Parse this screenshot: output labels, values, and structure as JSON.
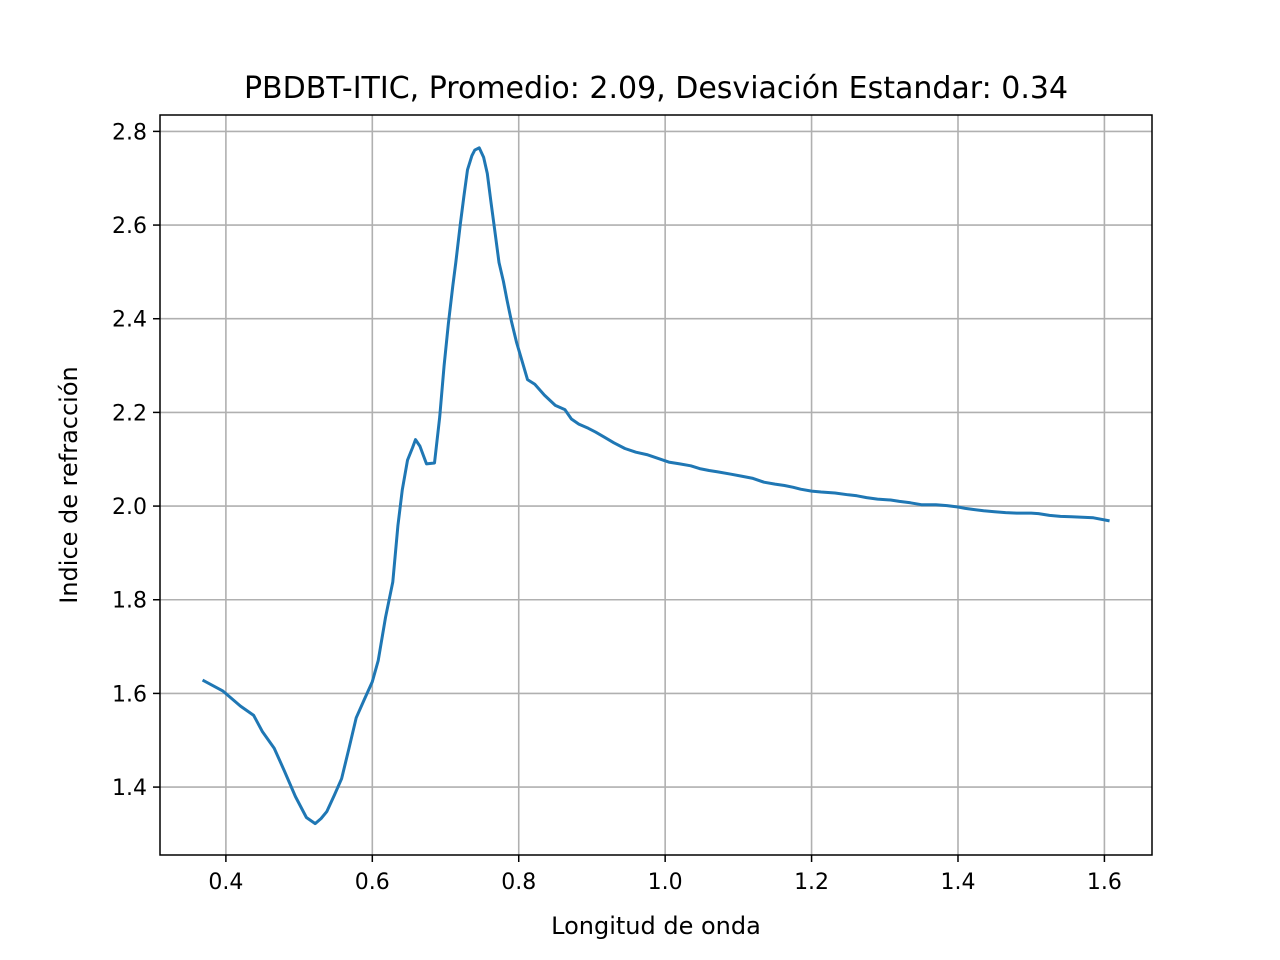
{
  "chart_data": {
    "type": "line",
    "title": "PBDBT-ITIC, Promedio: 2.09, Desviación Estandar: 0.34",
    "xlabel": "Longitud de onda",
    "ylabel": "Indice de refracción",
    "xlim": [
      0.31,
      1.665
    ],
    "ylim": [
      1.255,
      2.835
    ],
    "grid": true,
    "color": "#1f77b4",
    "x_ticks": [
      "0.4",
      "0.6",
      "0.8",
      "1.0",
      "1.2",
      "1.4",
      "1.6"
    ],
    "y_ticks": [
      "1.4",
      "1.6",
      "1.8",
      "2.0",
      "2.2",
      "2.4",
      "2.6",
      "2.8"
    ],
    "series": [
      {
        "x": [
          0.37,
          0.396,
          0.42,
          0.438,
          0.45,
          0.466,
          0.48,
          0.495,
          0.51,
          0.522,
          0.53,
          0.538,
          0.548,
          0.558,
          0.568,
          0.578,
          0.589,
          0.6,
          0.608,
          0.618,
          0.628,
          0.635,
          0.641,
          0.648,
          0.655,
          0.659,
          0.665,
          0.674,
          0.685,
          0.692,
          0.698,
          0.704,
          0.71,
          0.714,
          0.72,
          0.725,
          0.73,
          0.736,
          0.74,
          0.746,
          0.752,
          0.757,
          0.762,
          0.768,
          0.773,
          0.779,
          0.784,
          0.79,
          0.797,
          0.803,
          0.812,
          0.822,
          0.835,
          0.85,
          0.863,
          0.872,
          0.882,
          0.895,
          0.905,
          0.917,
          0.93,
          0.945,
          0.96,
          0.975,
          0.99,
          1.005,
          1.02,
          1.035,
          1.047,
          1.06,
          1.072,
          1.09,
          1.104,
          1.12,
          1.135,
          1.15,
          1.163,
          1.175,
          1.185,
          1.2,
          1.213,
          1.232,
          1.25,
          1.262,
          1.275,
          1.29,
          1.308,
          1.32,
          1.335,
          1.35,
          1.37,
          1.385,
          1.4,
          1.41,
          1.42,
          1.435,
          1.45,
          1.465,
          1.48,
          1.5,
          1.51,
          1.525,
          1.54,
          1.555,
          1.57,
          1.585,
          1.605
        ],
        "y": [
          1.627,
          1.605,
          1.573,
          1.553,
          1.518,
          1.483,
          1.434,
          1.38,
          1.335,
          1.322,
          1.333,
          1.348,
          1.382,
          1.418,
          1.482,
          1.548,
          1.587,
          1.625,
          1.67,
          1.762,
          1.838,
          1.958,
          2.035,
          2.098,
          2.125,
          2.142,
          2.128,
          2.09,
          2.092,
          2.19,
          2.3,
          2.39,
          2.47,
          2.52,
          2.6,
          2.66,
          2.718,
          2.748,
          2.76,
          2.765,
          2.745,
          2.71,
          2.65,
          2.58,
          2.52,
          2.48,
          2.44,
          2.395,
          2.35,
          2.318,
          2.27,
          2.26,
          2.237,
          2.215,
          2.206,
          2.186,
          2.175,
          2.166,
          2.158,
          2.147,
          2.135,
          2.123,
          2.115,
          2.11,
          2.102,
          2.094,
          2.09,
          2.086,
          2.08,
          2.076,
          2.073,
          2.068,
          2.064,
          2.059,
          2.051,
          2.047,
          2.044,
          2.04,
          2.036,
          2.032,
          2.03,
          2.028,
          2.024,
          2.022,
          2.018,
          2.015,
          2.013,
          2.01,
          2.007,
          2.003,
          2.003,
          2.001,
          1.998,
          1.995,
          1.993,
          1.99,
          1.988,
          1.986,
          1.985,
          1.985,
          1.984,
          1.98,
          1.978,
          1.977,
          1.976,
          1.975,
          1.969
        ]
      }
    ]
  }
}
